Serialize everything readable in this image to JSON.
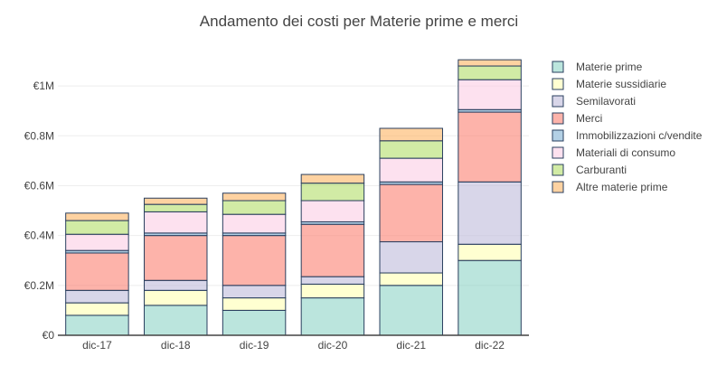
{
  "chart_data": {
    "type": "bar",
    "stacked": true,
    "title": "Andamento dei costi per Materie prime e merci",
    "xlabel": "",
    "ylabel": "",
    "categories": [
      "dic-17",
      "dic-18",
      "dic-19",
      "dic-20",
      "dic-21",
      "dic-22"
    ],
    "ylim": [
      0,
      1120000
    ],
    "yticks": [
      0,
      200000,
      400000,
      600000,
      800000,
      1000000
    ],
    "ytick_labels": [
      "€0",
      "€0.2M",
      "€0.4M",
      "€0.6M",
      "€0.8M",
      "€1M"
    ],
    "grid": true,
    "legend_position": "right",
    "series": [
      {
        "name": "Materie prime",
        "color": "#8dd3c7",
        "values": [
          80000,
          120000,
          100000,
          150000,
          200000,
          300000
        ]
      },
      {
        "name": "Materie sussidiarie",
        "color": "#ffffb3",
        "values": [
          50000,
          60000,
          50000,
          55000,
          50000,
          65000
        ]
      },
      {
        "name": "Semilavorati",
        "color": "#bebada",
        "values": [
          50000,
          40000,
          50000,
          30000,
          125000,
          250000
        ]
      },
      {
        "name": "Merci",
        "color": "#fb8072",
        "values": [
          150000,
          180000,
          200000,
          210000,
          230000,
          280000
        ]
      },
      {
        "name": "Immobilizzazioni c/vendite",
        "color": "#80b1d3",
        "values": [
          10000,
          10000,
          10000,
          10000,
          10000,
          10000
        ]
      },
      {
        "name": "Materiali di consumo",
        "color": "#fccde5",
        "values": [
          65000,
          85000,
          75000,
          85000,
          95000,
          120000
        ]
      },
      {
        "name": "Carburanti",
        "color": "#b3de69",
        "values": [
          55000,
          30000,
          55000,
          70000,
          70000,
          55000
        ]
      },
      {
        "name": "Altre materie prime",
        "color": "#fdb462",
        "values": [
          30000,
          25000,
          30000,
          35000,
          50000,
          25000
        ]
      }
    ]
  }
}
